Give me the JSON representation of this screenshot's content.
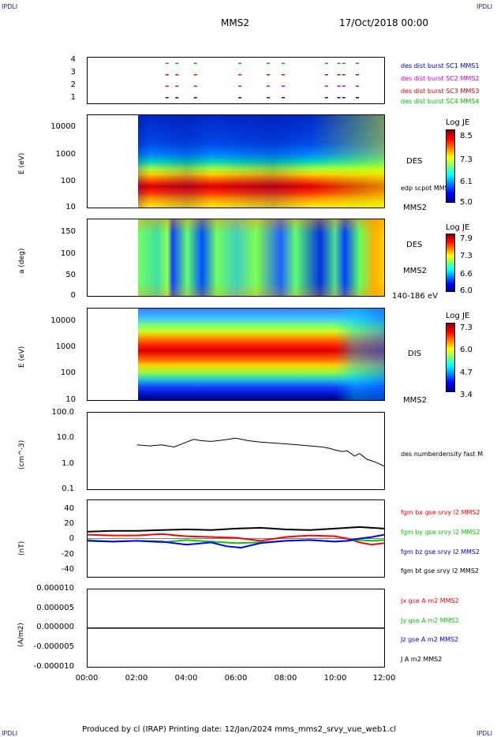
{
  "header": {
    "corner_tl": "IPDLI",
    "corner_tr": "IPDLI",
    "corner_bl": "IPDLI",
    "corner_br": "IPDLI",
    "mission": "MMS2",
    "datetime": "17/Oct/2018 00:00"
  },
  "footer": "Produced by cl (IRAP)   Printing date: 12/Jan/2024   mms_mms2_srvy_vue_web1.cl",
  "colors": {
    "jet_low": "#00008b",
    "jet_high": "#8b0000",
    "fgm_x": "#ff0000",
    "fgm_y": "#00cc00",
    "fgm_z": "#0000ff",
    "fgm_t": "#000000",
    "magenta": "#d000d0"
  },
  "chart_data": [
    {
      "type": "scatter",
      "panel": "burst",
      "ylim": [
        0.5,
        4.5
      ],
      "yticks": [
        "4",
        "3",
        "2",
        "1"
      ],
      "legend": [
        {
          "label": "des dist burst SC1 MMS1",
          "color": "#0000cc"
        },
        {
          "label": "des dist burst SC2 MMS2",
          "color": "#d000d0"
        },
        {
          "label": "des dist burst SC3 MMS3",
          "color": "#dd0000"
        },
        {
          "label": "des dist burst SC4 MMS4",
          "color": "#00bb00"
        }
      ],
      "burst_hours": [
        3.15,
        3.55,
        4.3,
        6.1,
        7.25,
        7.85,
        9.6,
        10.1,
        10.3,
        10.85
      ]
    },
    {
      "type": "heatmap",
      "panel": "des_energy",
      "ylabel": "E (eV)",
      "yticks": [
        "10000",
        "1000",
        "100",
        "10"
      ],
      "right_labels": [
        "DES",
        "edp scpot MMS2",
        "MMS2"
      ],
      "colorbar": {
        "title": "Log JE",
        "ticks": [
          "8.5",
          "7.3",
          "6.1",
          "5.0"
        ]
      },
      "data_start_hour": 2.0
    },
    {
      "type": "heatmap",
      "panel": "des_pitch",
      "ylabel": "a (deg)",
      "yticks": [
        "150",
        "100",
        "50",
        "0"
      ],
      "right_labels": [
        "DES",
        "MMS2",
        "140-186 eV"
      ],
      "colorbar": {
        "title": "Log JE",
        "ticks": [
          "7.9",
          "7.3",
          "6.6",
          "6.0"
        ]
      },
      "data_start_hour": 2.0
    },
    {
      "type": "heatmap",
      "panel": "dis_energy",
      "ylabel": "E (eV)",
      "yticks": [
        "10000",
        "1000",
        "100",
        "10"
      ],
      "right_labels": [
        "DIS",
        "MMS2"
      ],
      "colorbar": {
        "title": "Log JE",
        "ticks": [
          "7.3",
          "6.0",
          "4.7",
          "3.4"
        ]
      },
      "data_start_hour": 2.0
    },
    {
      "type": "line",
      "panel": "density",
      "ylabel": "(cm^-3)",
      "yticks": [
        "100.0",
        "10.0",
        "1.0",
        "0.1"
      ],
      "ylim_log": [
        0.1,
        100
      ],
      "series": [
        {
          "name": "des numberdensity fast M",
          "color": "#000000",
          "x": [
            2.0,
            2.5,
            3.0,
            3.5,
            4.0,
            4.3,
            4.6,
            5.0,
            5.5,
            6.0,
            6.5,
            7.0,
            7.5,
            8.0,
            8.5,
            9.0,
            9.5,
            9.8,
            10.0,
            10.3,
            10.5,
            10.8,
            11.0,
            11.3,
            11.6,
            12.0
          ],
          "y": [
            5.5,
            5.0,
            5.5,
            4.5,
            7.0,
            9.0,
            8.0,
            7.5,
            8.5,
            10.0,
            8.0,
            7.0,
            6.5,
            6.0,
            5.5,
            5.0,
            4.5,
            4.0,
            3.5,
            3.0,
            3.2,
            2.0,
            2.5,
            1.5,
            1.2,
            0.8
          ]
        }
      ]
    },
    {
      "type": "line",
      "panel": "fgm",
      "ylabel": "(nT)",
      "yticks": [
        "40",
        "20",
        "0",
        "-20",
        "-40"
      ],
      "ylim": [
        -50,
        50
      ],
      "series": [
        {
          "name": "fgm bx gse srvy l2 MMS2",
          "color": "#ff0000",
          "x": [
            0,
            1,
            2,
            3,
            4,
            5,
            6,
            7,
            8,
            9,
            10,
            10.5,
            11,
            11.5,
            12
          ],
          "y": [
            5,
            4,
            4,
            6,
            3,
            2,
            1,
            -3,
            2,
            4,
            3,
            0,
            -5,
            -8,
            -6
          ]
        },
        {
          "name": "fgm by gse srvy l2 MMS2",
          "color": "#00cc00",
          "x": [
            0,
            1,
            2,
            3,
            4,
            5,
            6,
            7,
            8,
            9,
            10,
            10.5,
            11,
            11.5,
            12
          ],
          "y": [
            -2,
            -4,
            -3,
            -5,
            -2,
            -4,
            -6,
            -5,
            -3,
            -2,
            -4,
            -3,
            -2,
            -3,
            -2
          ]
        },
        {
          "name": "fgm bz gse srvy l2 MMS2",
          "color": "#0000ff",
          "x": [
            0,
            1,
            2,
            3,
            4,
            5,
            5.6,
            6.2,
            7,
            8,
            9,
            10,
            10.5,
            11,
            11.5,
            12
          ],
          "y": [
            -3,
            -4,
            -3,
            -4,
            -8,
            -5,
            -10,
            -12,
            -6,
            -3,
            -2,
            -4,
            -3,
            0,
            2,
            5
          ]
        },
        {
          "name": "fgm bt gse srvy l2 MMS2",
          "color": "#000000",
          "x": [
            0,
            1,
            2,
            3,
            4,
            5,
            6,
            7,
            8,
            9,
            10,
            10.5,
            11,
            11.5,
            12
          ],
          "y": [
            9,
            10,
            10,
            11,
            12,
            11,
            13,
            14,
            12,
            11,
            13,
            14,
            15,
            14,
            13
          ]
        }
      ]
    },
    {
      "type": "line",
      "panel": "current",
      "ylabel": "(A/m2)",
      "yticks": [
        "0.000010",
        "0.000005",
        "0.000000",
        "-0.000005",
        "-0.000010"
      ],
      "ylim": [
        -1e-05,
        1e-05
      ],
      "series": [
        {
          "name": "Jx gse A m2 MMS2",
          "color": "#ff0000"
        },
        {
          "name": "Jy gse A m2 MMS2",
          "color": "#00cc00"
        },
        {
          "name": "Jz gse A m2 MMS2",
          "color": "#0000ff"
        },
        {
          "name": "J A m2 MMS2",
          "color": "#000000"
        }
      ]
    }
  ],
  "xaxis": {
    "ticks": [
      "00:00",
      "02:00",
      "04:00",
      "06:00",
      "08:00",
      "10:00",
      "12:00"
    ],
    "xlim": [
      0,
      12
    ]
  }
}
